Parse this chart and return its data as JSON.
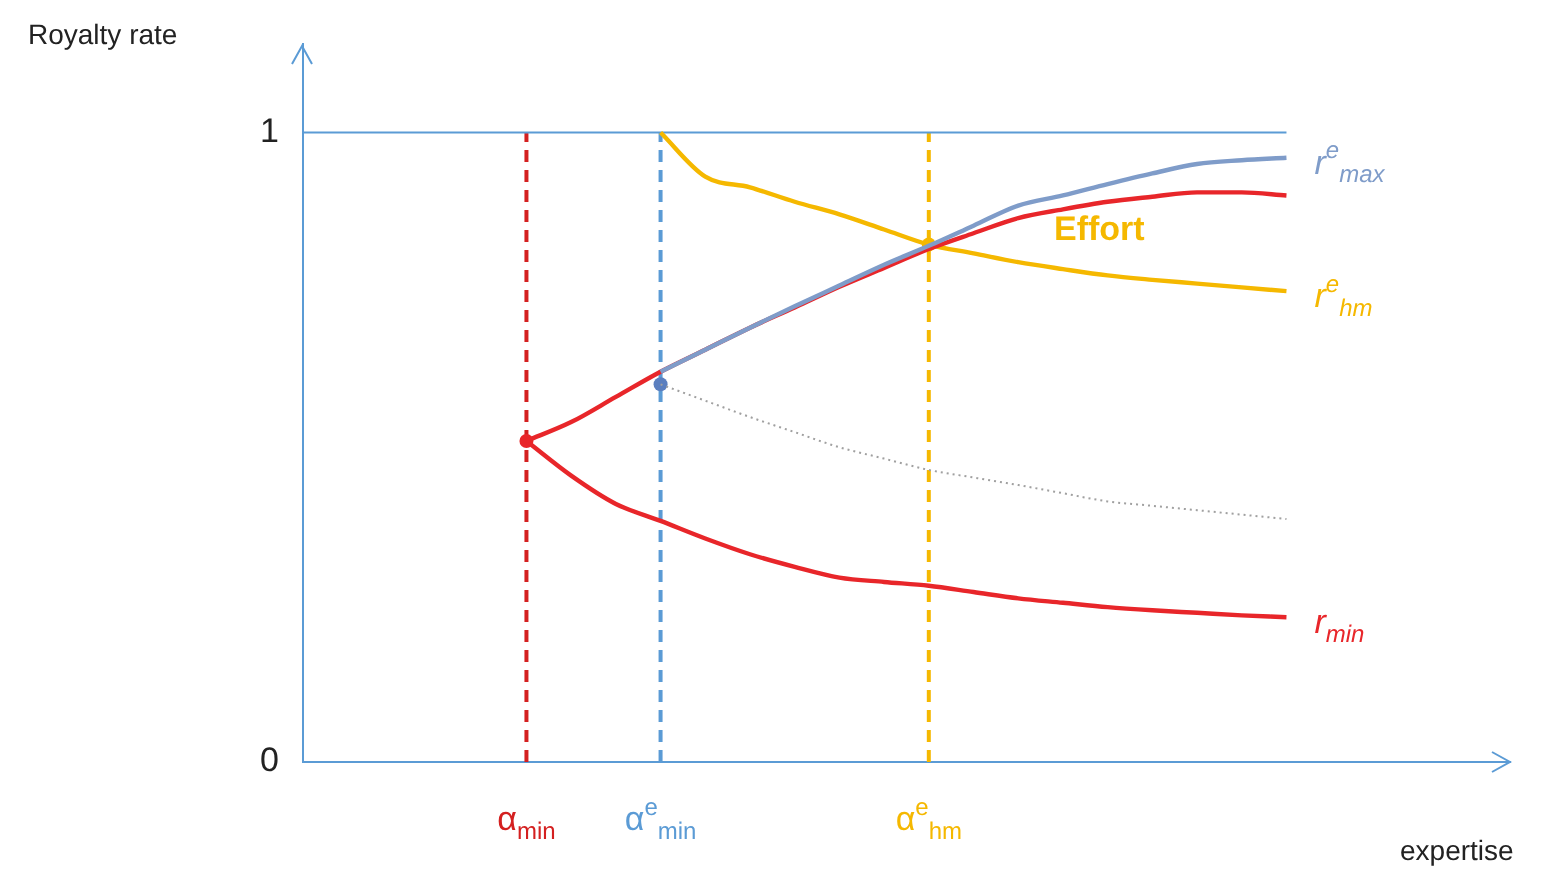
{
  "chart_data": {
    "type": "line",
    "xlabel": "expertise",
    "ylabel": "Royalty rate",
    "categories": [
      null,
      null,
      null,
      null,
      null,
      "α$_{min}$",
      null,
      null,
      "α$^{e}$$_{min}$",
      null,
      null,
      null,
      null,
      null,
      "α$^{e}$$_{hm}$",
      null,
      null,
      null,
      null,
      null,
      null,
      null,
      null,
      null,
      null,
      null,
      null,
      null
    ],
    "ylim": [
      0,
      1.14
    ],
    "yticks": [
      0,
      1
    ],
    "legend": false,
    "grid": false,
    "marker": "none",
    "ref_lines": [
      {
        "axis": "x",
        "value": "α$_{min}$",
        "color": "#d42020",
        "line_style": "dashed"
      },
      {
        "axis": "x",
        "value": "α$^{e}$$_{min}$",
        "color": "#5b9bd5",
        "line_style": "dashed"
      },
      {
        "axis": "x",
        "value": "α$^{e}$$_{hm}$",
        "color": "#f5b800",
        "line_style": "dashed"
      },
      {
        "axis": "y",
        "value": 1,
        "color": "#5b9bd5",
        "line_style": "solid"
      }
    ],
    "annotations": [
      "Effort"
    ],
    "series": [
      {
        "name": "r$^{e}$$_{max}$",
        "color": "#7f9cc9",
        "values": [
          null,
          null,
          null,
          null,
          null,
          null,
          null,
          null,
          0.62,
          0.655,
          0.69,
          0.724,
          0.757,
          0.79,
          0.82,
          0.852,
          0.884,
          0.9,
          0.918,
          0.935,
          0.95,
          0.956,
          0.96,
          null,
          null,
          null,
          null,
          null
        ]
      },
      {
        "color": "#e8262a",
        "values": [
          null,
          null,
          null,
          null,
          null,
          0.51,
          0.54,
          0.58,
          0.62,
          0.655,
          0.69,
          0.722,
          0.755,
          0.785,
          0.815,
          0.84,
          0.864,
          0.878,
          0.89,
          0.898,
          0.905,
          0.905,
          0.9,
          null,
          null,
          null,
          null,
          null
        ]
      },
      {
        "name": "r$_{min}$",
        "color": "#e8262a",
        "values": [
          null,
          null,
          null,
          null,
          null,
          0.51,
          0.455,
          0.41,
          0.383,
          0.355,
          0.33,
          0.31,
          0.293,
          0.286,
          0.28,
          0.27,
          0.26,
          0.253,
          0.246,
          0.241,
          0.237,
          0.233,
          0.23,
          null,
          null,
          null,
          null,
          null
        ]
      },
      {
        "name": "r$^{e}$$_{hm}$",
        "color": "#f5b800",
        "values": [
          null,
          null,
          null,
          null,
          null,
          null,
          null,
          null,
          1,
          0.93,
          0.913,
          0.89,
          0.87,
          0.846,
          0.822,
          0.808,
          0.794,
          0.783,
          0.773,
          0.766,
          0.76,
          0.754,
          0.748,
          null,
          null,
          null,
          null,
          null
        ]
      },
      {
        "color": "#a0a0a0",
        "line_style": "dotted",
        "values": [
          null,
          null,
          null,
          null,
          null,
          null,
          null,
          null,
          0.6,
          0.574,
          0.548,
          0.524,
          0.5,
          0.482,
          0.464,
          0.452,
          0.44,
          0.427,
          0.414,
          0.407,
          0.4,
          0.393,
          0.386,
          null,
          null,
          null,
          null,
          null
        ]
      },
      {
        "type": "scatter",
        "marker": "circle",
        "color": "#e8262a",
        "values": [
          null,
          null,
          null,
          null,
          null,
          0.51,
          null,
          null,
          null,
          null,
          null,
          null,
          null,
          null,
          null,
          null,
          null,
          null,
          null,
          null,
          null,
          null,
          null,
          null,
          null,
          null,
          null,
          null
        ]
      },
      {
        "type": "scatter",
        "marker": "circle",
        "color": "#5b7fbf",
        "values": [
          null,
          null,
          null,
          null,
          null,
          null,
          null,
          null,
          0.6,
          null,
          null,
          null,
          null,
          null,
          null,
          null,
          null,
          null,
          null,
          null,
          null,
          null,
          null,
          null,
          null,
          null,
          null,
          null
        ]
      },
      {
        "type": "scatter",
        "marker": "circle",
        "color": "#f5b800",
        "values": [
          null,
          null,
          null,
          null,
          null,
          null,
          null,
          null,
          null,
          null,
          null,
          null,
          null,
          null,
          0.822,
          null,
          null,
          null,
          null,
          null,
          null,
          null,
          null,
          null,
          null,
          null,
          null,
          null
        ]
      }
    ]
  }
}
